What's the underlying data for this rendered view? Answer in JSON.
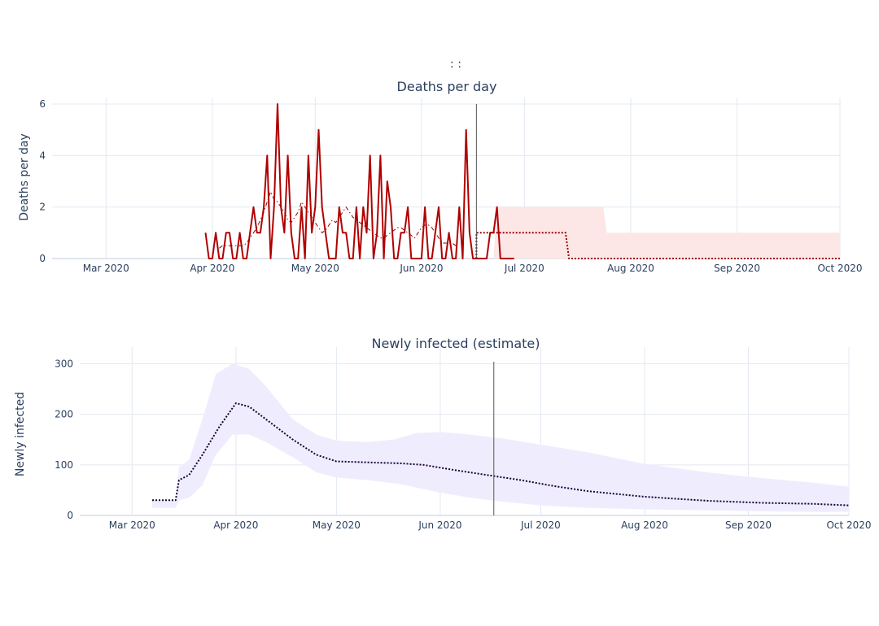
{
  "figure": {
    "top_title": ":          :"
  },
  "colors": {
    "grid": "#e3e8f0",
    "axis_line": "#e3e8f0",
    "deaths_line": "#b00000",
    "deaths_avg": "#990000",
    "forecast_band": "#fde6e6",
    "forecast_median": "#990000",
    "infected_band": "#efedfd",
    "infected_median": "#1a0033",
    "today_line": "#555555"
  },
  "chart_data": [
    {
      "type": "line",
      "title": "Deaths per day",
      "ylabel": "Deaths per day",
      "xlabel": "",
      "xlim": [
        "2020-02-10",
        "2020-10-01"
      ],
      "ylim": [
        0,
        6
      ],
      "y_ticks": [
        0,
        2,
        4,
        6
      ],
      "x_ticks": [
        {
          "date": "2020-03-01",
          "label": "Mar 2020"
        },
        {
          "date": "2020-04-01",
          "label": "Apr 2020"
        },
        {
          "date": "2020-05-01",
          "label": "May 2020"
        },
        {
          "date": "2020-06-01",
          "label": "Jun 2020"
        },
        {
          "date": "2020-07-01",
          "label": "Jul 2020"
        },
        {
          "date": "2020-08-01",
          "label": "Aug 2020"
        },
        {
          "date": "2020-09-01",
          "label": "Sep 2020"
        },
        {
          "date": "2020-10-01",
          "label": "Oct 2020"
        }
      ],
      "grid": true,
      "today": "2020-06-17",
      "series": [
        {
          "style": "solid",
          "x_start": "2020-03-30",
          "values": [
            1,
            0,
            0,
            1,
            0,
            0,
            1,
            1,
            0,
            0,
            1,
            0,
            0,
            1,
            2,
            1,
            1,
            2,
            4,
            0,
            2,
            6,
            2,
            1,
            4,
            1,
            0,
            0,
            2,
            0,
            4,
            1,
            2,
            5,
            2,
            1,
            0,
            0,
            0,
            2,
            1,
            1,
            0,
            0,
            2,
            0,
            2,
            1,
            4,
            0,
            1,
            4,
            0,
            3,
            2,
            0,
            0,
            1,
            1,
            2,
            0,
            0,
            0,
            0,
            2,
            0,
            0,
            1,
            2,
            0,
            0,
            1,
            0,
            0,
            2,
            0,
            5,
            1,
            0,
            0,
            0,
            0,
            0,
            1,
            1,
            2,
            0,
            0,
            0,
            0,
            0
          ]
        },
        {
          "style": "dashdot",
          "x_start": "2020-04-03",
          "values": [
            0.4,
            0.5,
            0.5,
            0.5,
            0.5,
            0.5,
            0.5,
            0.5,
            0.6,
            0.8,
            1.0,
            1.2,
            1.5,
            1.8,
            2.2,
            2.6,
            2.3,
            2.2,
            2.0,
            1.8,
            1.5,
            1.4,
            1.6,
            1.8,
            2.2,
            2.0,
            1.8,
            1.6,
            1.4,
            1.2,
            1.0,
            1.1,
            1.3,
            1.5,
            1.4,
            1.6,
            1.8,
            2.0,
            1.8,
            1.6,
            1.5,
            1.4,
            1.3,
            1.2,
            1.1,
            1.0,
            0.9,
            0.8,
            0.8,
            0.9,
            1.0,
            1.1,
            1.2,
            1.2,
            1.1,
            1.0,
            0.9,
            0.8,
            1.0,
            1.2,
            1.3,
            1.3,
            1.2,
            1.0,
            0.8,
            0.6,
            0.6,
            0.6,
            0.6,
            0.5
          ]
        },
        {
          "style": "dotted",
          "type_hint": "forecast-median",
          "points": [
            [
              "2020-06-17",
              0
            ],
            [
              "2020-06-17",
              1
            ],
            [
              "2020-07-13",
              1
            ],
            [
              "2020-07-14",
              0
            ],
            [
              "2020-10-01",
              0
            ]
          ]
        }
      ],
      "band": {
        "label_hint": "forecast-range",
        "upper": [
          [
            "2020-06-22",
            0
          ],
          [
            "2020-06-23",
            2
          ],
          [
            "2020-07-24",
            2
          ],
          [
            "2020-07-25",
            1
          ],
          [
            "2020-10-01",
            1
          ]
        ],
        "lower": [
          [
            "2020-06-22",
            0
          ],
          [
            "2020-10-01",
            0
          ]
        ]
      }
    },
    {
      "type": "area",
      "title": "Newly infected (estimate)",
      "ylabel": "Newly infected",
      "xlabel": "",
      "xlim": [
        "2020-02-10",
        "2020-10-01"
      ],
      "ylim": [
        0,
        320
      ],
      "y_ticks": [
        0,
        100,
        200,
        300
      ],
      "x_ticks": [
        {
          "date": "2020-03-01",
          "label": "Mar 2020"
        },
        {
          "date": "2020-04-01",
          "label": "Apr 2020"
        },
        {
          "date": "2020-05-01",
          "label": "May 2020"
        },
        {
          "date": "2020-06-01",
          "label": "Jun 2020"
        },
        {
          "date": "2020-07-01",
          "label": "Jul 2020"
        },
        {
          "date": "2020-08-01",
          "label": "Aug 2020"
        },
        {
          "date": "2020-09-01",
          "label": "Sep 2020"
        },
        {
          "date": "2020-10-01",
          "label": "Oct 2020"
        }
      ],
      "grid": true,
      "today": "2020-06-17",
      "series": [
        {
          "style": "dotted",
          "points": [
            [
              "2020-03-07",
              30
            ],
            [
              "2020-03-14",
              30
            ],
            [
              "2020-03-15",
              70
            ],
            [
              "2020-03-18",
              80
            ],
            [
              "2020-03-22",
              120
            ],
            [
              "2020-03-27",
              175
            ],
            [
              "2020-04-01",
              222
            ],
            [
              "2020-04-05",
              215
            ],
            [
              "2020-04-10",
              190
            ],
            [
              "2020-04-18",
              150
            ],
            [
              "2020-04-25",
              120
            ],
            [
              "2020-05-01",
              107
            ],
            [
              "2020-05-10",
              105
            ],
            [
              "2020-05-20",
              103
            ],
            [
              "2020-05-27",
              100
            ],
            [
              "2020-06-05",
              90
            ],
            [
              "2020-06-15",
              80
            ],
            [
              "2020-06-25",
              70
            ],
            [
              "2020-07-05",
              58
            ],
            [
              "2020-07-15",
              48
            ],
            [
              "2020-08-01",
              37
            ],
            [
              "2020-08-20",
              29
            ],
            [
              "2020-09-05",
              25
            ],
            [
              "2020-09-20",
              23
            ],
            [
              "2020-10-01",
              20
            ]
          ]
        }
      ],
      "band": {
        "upper": [
          [
            "2020-03-07",
            30
          ],
          [
            "2020-03-14",
            30
          ],
          [
            "2020-03-15",
            95
          ],
          [
            "2020-03-18",
            110
          ],
          [
            "2020-03-22",
            190
          ],
          [
            "2020-03-26",
            280
          ],
          [
            "2020-03-31",
            300
          ],
          [
            "2020-04-05",
            290
          ],
          [
            "2020-04-10",
            255
          ],
          [
            "2020-04-18",
            190
          ],
          [
            "2020-04-25",
            160
          ],
          [
            "2020-05-01",
            148
          ],
          [
            "2020-05-10",
            145
          ],
          [
            "2020-05-18",
            150
          ],
          [
            "2020-05-25",
            163
          ],
          [
            "2020-06-01",
            165
          ],
          [
            "2020-06-10",
            160
          ],
          [
            "2020-06-20",
            152
          ],
          [
            "2020-07-01",
            140
          ],
          [
            "2020-07-15",
            125
          ],
          [
            "2020-08-01",
            102
          ],
          [
            "2020-08-20",
            85
          ],
          [
            "2020-09-05",
            74
          ],
          [
            "2020-09-20",
            65
          ],
          [
            "2020-10-01",
            57
          ]
        ],
        "lower": [
          [
            "2020-03-07",
            15
          ],
          [
            "2020-03-14",
            15
          ],
          [
            "2020-03-15",
            30
          ],
          [
            "2020-03-18",
            35
          ],
          [
            "2020-03-22",
            60
          ],
          [
            "2020-03-26",
            120
          ],
          [
            "2020-03-31",
            160
          ],
          [
            "2020-04-05",
            160
          ],
          [
            "2020-04-10",
            145
          ],
          [
            "2020-04-18",
            115
          ],
          [
            "2020-04-25",
            85
          ],
          [
            "2020-05-01",
            75
          ],
          [
            "2020-05-10",
            70
          ],
          [
            "2020-05-20",
            62
          ],
          [
            "2020-06-01",
            45
          ],
          [
            "2020-06-10",
            35
          ],
          [
            "2020-06-20",
            27
          ],
          [
            "2020-07-01",
            20
          ],
          [
            "2020-07-15",
            15
          ],
          [
            "2020-08-01",
            12
          ],
          [
            "2020-08-20",
            10
          ],
          [
            "2020-09-05",
            8
          ],
          [
            "2020-09-20",
            7
          ],
          [
            "2020-10-01",
            7
          ]
        ]
      }
    }
  ]
}
